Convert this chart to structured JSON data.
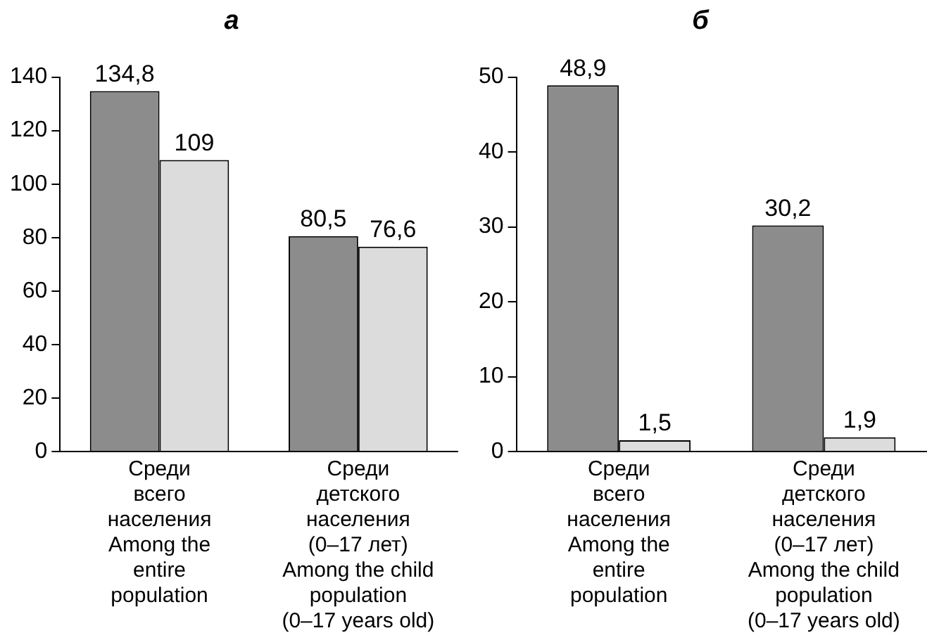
{
  "chart_data": [
    {
      "type": "bar",
      "title": "а",
      "categories": [
        "Среди\nвсего\nнаселения\nAmong the\nentire\npopulation",
        "Среди\nдетского\nнаселения\n(0–17 лет)\nAmong the child\npopulation\n(0–17 years old)"
      ],
      "series": [
        {
          "color": "#8c8c8c",
          "values": [
            134.8,
            80.5
          ],
          "value_labels": [
            "134,8",
            "80,5"
          ]
        },
        {
          "color": "#dcdcdc",
          "values": [
            109,
            76.6
          ],
          "value_labels": [
            "109",
            "76,6"
          ]
        }
      ],
      "ylim": [
        0,
        140
      ],
      "yticks": [
        0,
        20,
        40,
        60,
        80,
        100,
        120,
        140
      ],
      "grid": false,
      "legend": false
    },
    {
      "type": "bar",
      "title": "б",
      "categories": [
        "Среди\nвсего\nнаселения\nAmong the\nentire\npopulation",
        "Среди\nдетского\nнаселения\n(0–17 лет)\nAmong the child\npopulation\n(0–17 years old)"
      ],
      "series": [
        {
          "color": "#8c8c8c",
          "values": [
            48.9,
            30.2
          ],
          "value_labels": [
            "48,9",
            "30,2"
          ]
        },
        {
          "color": "#dcdcdc",
          "values": [
            1.5,
            1.9
          ],
          "value_labels": [
            "1,5",
            "1,9"
          ]
        }
      ],
      "ylim": [
        0,
        50
      ],
      "yticks": [
        0,
        10,
        20,
        30,
        40,
        50
      ],
      "grid": false,
      "legend": false
    }
  ]
}
